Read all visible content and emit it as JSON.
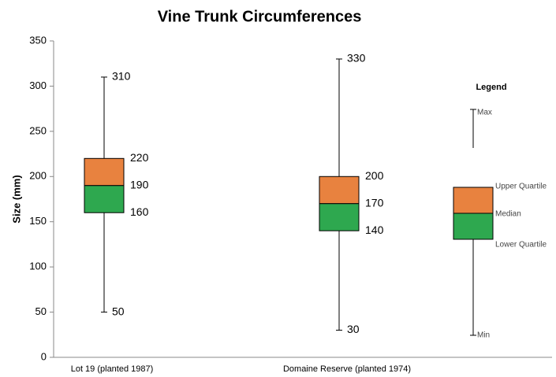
{
  "chart_data": {
    "type": "box",
    "title": "Vine Trunk Circumferences",
    "y_label": "Size (mm)",
    "categories": [
      "Lot 19 (planted 1987)",
      "Domaine Reserve (planted 1974)"
    ],
    "min": [
      50,
      30
    ],
    "q1": [
      160,
      140
    ],
    "median": [
      190,
      170
    ],
    "q3": [
      220,
      200
    ],
    "max": [
      310,
      330
    ],
    "upper_color": "#e8823f",
    "lower_color": "#2ea84f",
    "ylim": [
      0,
      350
    ],
    "yticks": [
      0,
      50,
      100,
      150,
      200,
      250,
      300,
      350
    ],
    "legend": {
      "title": "Legend",
      "max": "Max",
      "q3": "Upper Quartile",
      "median": "Median",
      "q1": "Lower Quartile",
      "min": "Min"
    }
  }
}
